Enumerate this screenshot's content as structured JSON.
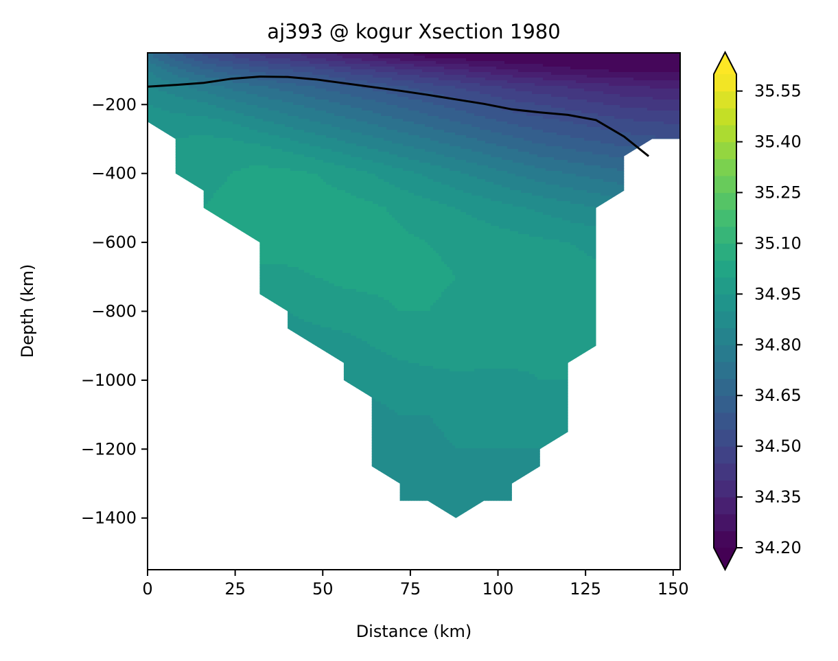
{
  "chart_data": {
    "type": "filled-contour",
    "title": "aj393 @ kogur Xsection 1980",
    "xlabel": "Distance (km)",
    "ylabel": "Depth (km)",
    "xlim": [
      0,
      152
    ],
    "ylim": [
      -1550,
      -50
    ],
    "x_ticks": [
      0,
      25,
      50,
      75,
      100,
      125,
      150
    ],
    "y_ticks": [
      -200,
      -400,
      -600,
      -800,
      -1000,
      -1200,
      -1400
    ],
    "colormap": "viridis",
    "colorbar": {
      "min": 34.2,
      "max": 35.6,
      "levels": 28,
      "extend": "both",
      "ticks": [
        "34.20",
        "34.35",
        "34.50",
        "34.65",
        "34.80",
        "34.95",
        "35.10",
        "35.25",
        "35.40",
        "35.55"
      ]
    },
    "section_outline": [
      [
        0,
        -50
      ],
      [
        152,
        -50
      ],
      [
        152,
        -300
      ],
      [
        144,
        -300
      ],
      [
        136,
        -350
      ],
      [
        136,
        -450
      ],
      [
        128,
        -500
      ],
      [
        128,
        -900
      ],
      [
        120,
        -950
      ],
      [
        120,
        -1150
      ],
      [
        112,
        -1200
      ],
      [
        112,
        -1250
      ],
      [
        104,
        -1300
      ],
      [
        104,
        -1350
      ],
      [
        96,
        -1350
      ],
      [
        88,
        -1400
      ],
      [
        80,
        -1350
      ],
      [
        72,
        -1350
      ],
      [
        72,
        -1300
      ],
      [
        64,
        -1250
      ],
      [
        64,
        -1050
      ],
      [
        56,
        -1000
      ],
      [
        56,
        -950
      ],
      [
        48,
        -900
      ],
      [
        40,
        -850
      ],
      [
        40,
        -800
      ],
      [
        32,
        -750
      ],
      [
        32,
        -600
      ],
      [
        16,
        -500
      ],
      [
        16,
        -450
      ],
      [
        8,
        -400
      ],
      [
        8,
        -300
      ],
      [
        0,
        -250
      ]
    ],
    "salinity_x": [
      0,
      8,
      16,
      24,
      32,
      40,
      48,
      56,
      64,
      72,
      80,
      88,
      96,
      104,
      112,
      120,
      128,
      136,
      144,
      152
    ],
    "salinity_depth": [
      -60,
      -100,
      -150,
      -200,
      -250,
      -300,
      -350,
      -400,
      -500,
      -600,
      -700,
      -800,
      -900,
      -1000,
      -1100,
      -1200,
      -1300,
      -1400
    ],
    "salinity": [
      [
        34.72,
        34.62,
        34.55,
        34.5,
        34.45,
        34.42,
        34.38,
        34.34,
        34.3,
        34.26,
        34.24,
        34.22,
        34.21,
        34.2,
        34.2,
        34.2,
        34.2,
        34.2,
        34.2,
        34.2
      ],
      [
        34.8,
        34.72,
        34.66,
        34.62,
        34.58,
        34.55,
        34.52,
        34.48,
        34.45,
        34.42,
        34.39,
        34.36,
        34.33,
        34.3,
        34.28,
        34.26,
        34.25,
        34.24,
        34.24,
        34.24
      ],
      [
        34.86,
        34.82,
        34.78,
        34.74,
        34.71,
        34.68,
        34.65,
        34.62,
        34.59,
        34.56,
        34.53,
        34.5,
        34.47,
        34.44,
        34.42,
        34.4,
        34.38,
        34.36,
        34.35,
        34.34
      ],
      [
        34.9,
        34.88,
        34.86,
        34.82,
        34.79,
        34.76,
        34.73,
        34.7,
        34.67,
        34.64,
        34.61,
        34.58,
        34.55,
        34.52,
        34.5,
        34.48,
        34.46,
        34.44,
        34.43,
        34.42
      ],
      [
        34.93,
        34.92,
        34.92,
        34.9,
        34.86,
        34.83,
        34.8,
        34.77,
        34.74,
        34.71,
        34.68,
        34.65,
        34.62,
        34.59,
        34.57,
        34.55,
        34.53,
        34.51,
        34.5,
        34.49
      ],
      [
        34.95,
        34.95,
        34.96,
        34.95,
        34.93,
        34.9,
        34.87,
        34.84,
        34.81,
        34.78,
        34.75,
        34.72,
        34.69,
        34.66,
        34.63,
        34.61,
        34.59,
        34.57,
        34.56,
        34.55
      ],
      [
        34.97,
        34.97,
        34.98,
        34.99,
        34.99,
        34.97,
        34.94,
        34.91,
        34.88,
        34.85,
        34.82,
        34.79,
        34.76,
        34.73,
        34.7,
        34.68,
        34.66,
        34.64,
        34.63,
        34.62
      ],
      [
        34.98,
        34.98,
        34.99,
        35.0,
        35.01,
        35.01,
        35.0,
        34.98,
        34.95,
        34.92,
        34.89,
        34.86,
        34.83,
        34.8,
        34.77,
        34.75,
        34.73,
        34.71,
        34.7,
        34.69
      ],
      [
        34.99,
        34.99,
        35.0,
        35.01,
        35.02,
        35.02,
        35.02,
        35.02,
        35.01,
        34.99,
        34.97,
        34.95,
        34.93,
        34.91,
        34.89,
        34.87,
        34.85,
        34.83,
        34.82,
        34.81
      ],
      [
        34.99,
        34.99,
        35.0,
        35.01,
        35.02,
        35.02,
        35.02,
        35.02,
        35.02,
        35.01,
        35.0,
        34.99,
        34.98,
        34.97,
        34.96,
        34.95,
        34.94,
        34.93,
        34.92,
        34.92
      ],
      [
        34.99,
        34.99,
        34.99,
        34.99,
        34.99,
        34.99,
        35.0,
        35.01,
        35.01,
        35.01,
        35.01,
        35.0,
        34.99,
        34.98,
        34.97,
        34.97,
        34.96,
        34.96,
        34.96,
        34.96
      ],
      [
        34.92,
        34.92,
        34.92,
        34.93,
        34.94,
        34.95,
        34.97,
        34.98,
        34.99,
        35.0,
        35.0,
        34.99,
        34.98,
        34.97,
        34.97,
        34.96,
        34.96,
        34.96,
        34.96,
        34.96
      ],
      [
        34.9,
        34.9,
        34.9,
        34.9,
        34.9,
        34.91,
        34.92,
        34.93,
        34.95,
        34.97,
        34.98,
        34.98,
        34.97,
        34.97,
        34.96,
        34.96,
        34.96,
        34.96,
        34.96,
        34.96
      ],
      [
        34.88,
        34.88,
        34.88,
        34.88,
        34.88,
        34.89,
        34.9,
        34.9,
        34.91,
        34.92,
        34.93,
        34.94,
        34.94,
        34.94,
        34.95,
        34.95,
        34.95,
        34.95,
        34.95,
        34.95
      ],
      [
        34.88,
        34.88,
        34.88,
        34.88,
        34.88,
        34.88,
        34.89,
        34.89,
        34.89,
        34.9,
        34.9,
        34.91,
        34.91,
        34.91,
        34.91,
        34.91,
        34.91,
        34.91,
        34.91,
        34.91
      ],
      [
        34.88,
        34.88,
        34.88,
        34.88,
        34.88,
        34.88,
        34.88,
        34.89,
        34.89,
        34.89,
        34.89,
        34.9,
        34.9,
        34.9,
        34.9,
        34.9,
        34.9,
        34.9,
        34.9,
        34.9
      ],
      [
        34.88,
        34.88,
        34.88,
        34.88,
        34.88,
        34.88,
        34.88,
        34.88,
        34.89,
        34.89,
        34.89,
        34.89,
        34.89,
        34.89,
        34.89,
        34.89,
        34.89,
        34.89,
        34.89,
        34.89
      ],
      [
        34.88,
        34.88,
        34.88,
        34.88,
        34.88,
        34.88,
        34.88,
        34.88,
        34.88,
        34.89,
        34.89,
        34.89,
        34.89,
        34.89,
        34.89,
        34.89,
        34.89,
        34.89,
        34.89,
        34.89
      ]
    ],
    "line": {
      "color": "#000000",
      "x": [
        0,
        8,
        16,
        24,
        32,
        40,
        48,
        56,
        64,
        72,
        80,
        88,
        96,
        104,
        112,
        120,
        128,
        136,
        143
      ],
      "y": [
        -148,
        -143,
        -137,
        -125,
        -119,
        -120,
        -127,
        -138,
        -149,
        -160,
        -172,
        -185,
        -198,
        -214,
        -223,
        -230,
        -245,
        -293,
        -350
      ]
    }
  }
}
